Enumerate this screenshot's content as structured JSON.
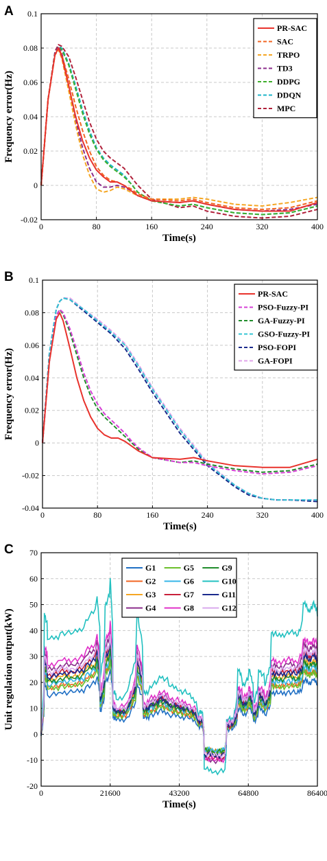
{
  "chart_data": [
    {
      "panel": "A",
      "type": "line",
      "xlabel": "Time(s)",
      "ylabel": "Frequency error(Hz)",
      "xlim": [
        0,
        400
      ],
      "ylim": [
        -0.02,
        0.1
      ],
      "xticks": [
        "0",
        "80",
        "160",
        "240",
        "320",
        "400"
      ],
      "yticks": [
        "-0.02",
        "0",
        "0.02",
        "0.04",
        "0.06",
        "0.08",
        "0.1"
      ],
      "grid": "dashed",
      "legend_position": "top-right",
      "series": [
        {
          "name": "PR-SAC",
          "color": "#e8322c",
          "style": "solid",
          "x": [
            0,
            10,
            20,
            25,
            30,
            40,
            50,
            60,
            70,
            80,
            90,
            100,
            110,
            120,
            130,
            140,
            160,
            200,
            220,
            240,
            280,
            320,
            360,
            400
          ],
          "y": [
            0,
            0.05,
            0.076,
            0.08,
            0.075,
            0.058,
            0.04,
            0.026,
            0.016,
            0.009,
            0.005,
            0.002,
            0.002,
            0.0,
            -0.003,
            -0.006,
            -0.009,
            -0.01,
            -0.009,
            -0.011,
            -0.014,
            -0.015,
            -0.015,
            -0.01
          ]
        },
        {
          "name": "SAC",
          "color": "#f26522",
          "style": "dashed",
          "x": [
            0,
            10,
            20,
            25,
            30,
            40,
            50,
            60,
            70,
            80,
            90,
            100,
            110,
            120,
            130,
            140,
            160,
            200,
            220,
            240,
            280,
            320,
            360,
            400
          ],
          "y": [
            0,
            0.05,
            0.076,
            0.08,
            0.076,
            0.062,
            0.046,
            0.032,
            0.02,
            0.011,
            0.006,
            0.003,
            0.002,
            0.0,
            -0.002,
            -0.005,
            -0.008,
            -0.009,
            -0.008,
            -0.01,
            -0.013,
            -0.014,
            -0.013,
            -0.009
          ]
        },
        {
          "name": "TRPO",
          "color": "#f5a623",
          "style": "dashed",
          "x": [
            0,
            10,
            20,
            25,
            30,
            40,
            50,
            60,
            70,
            80,
            90,
            100,
            110,
            120,
            130,
            140,
            160,
            200,
            220,
            240,
            280,
            320,
            360,
            400
          ],
          "y": [
            0,
            0.05,
            0.076,
            0.079,
            0.074,
            0.055,
            0.035,
            0.018,
            0.006,
            -0.002,
            -0.004,
            -0.003,
            -0.001,
            -0.002,
            -0.004,
            -0.006,
            -0.008,
            -0.008,
            -0.007,
            -0.008,
            -0.011,
            -0.012,
            -0.01,
            -0.007
          ]
        },
        {
          "name": "TD3",
          "color": "#8b2c8b",
          "style": "dashed",
          "x": [
            0,
            10,
            20,
            25,
            30,
            40,
            50,
            60,
            70,
            80,
            90,
            100,
            110,
            120,
            130,
            140,
            160,
            200,
            220,
            240,
            280,
            320,
            360,
            400
          ],
          "y": [
            0,
            0.05,
            0.077,
            0.081,
            0.077,
            0.058,
            0.038,
            0.022,
            0.01,
            0.002,
            -0.001,
            -0.001,
            0.0,
            -0.001,
            -0.003,
            -0.006,
            -0.009,
            -0.01,
            -0.009,
            -0.011,
            -0.014,
            -0.015,
            -0.014,
            -0.011
          ]
        },
        {
          "name": "DDPG",
          "color": "#3dae2b",
          "style": "dashed",
          "x": [
            0,
            10,
            20,
            25,
            30,
            40,
            50,
            60,
            70,
            80,
            90,
            100,
            110,
            120,
            130,
            140,
            160,
            200,
            220,
            240,
            280,
            320,
            360,
            400
          ],
          "y": [
            0,
            0.05,
            0.077,
            0.081,
            0.079,
            0.07,
            0.056,
            0.042,
            0.03,
            0.021,
            0.015,
            0.011,
            0.008,
            0.005,
            0.001,
            -0.004,
            -0.009,
            -0.012,
            -0.011,
            -0.013,
            -0.016,
            -0.017,
            -0.016,
            -0.012
          ]
        },
        {
          "name": "DDQN",
          "color": "#1eb4c8",
          "style": "dashed",
          "x": [
            0,
            10,
            20,
            25,
            30,
            40,
            50,
            60,
            70,
            80,
            90,
            100,
            110,
            120,
            130,
            140,
            160,
            200,
            220,
            240,
            280,
            320,
            360,
            400
          ],
          "y": [
            0,
            0.05,
            0.077,
            0.081,
            0.08,
            0.071,
            0.058,
            0.044,
            0.032,
            0.022,
            0.016,
            0.012,
            0.009,
            0.006,
            0.001,
            -0.004,
            -0.009,
            -0.012,
            -0.011,
            -0.013,
            -0.016,
            -0.017,
            -0.016,
            -0.012
          ]
        },
        {
          "name": "MPC",
          "color": "#b0203a",
          "style": "dashed",
          "x": [
            0,
            10,
            20,
            25,
            30,
            40,
            50,
            60,
            70,
            80,
            90,
            100,
            110,
            120,
            130,
            140,
            160,
            200,
            220,
            240,
            280,
            320,
            360,
            400
          ],
          "y": [
            0,
            0.05,
            0.078,
            0.082,
            0.081,
            0.075,
            0.063,
            0.05,
            0.037,
            0.027,
            0.02,
            0.016,
            0.013,
            0.01,
            0.005,
            0.0,
            -0.008,
            -0.013,
            -0.012,
            -0.015,
            -0.018,
            -0.019,
            -0.018,
            -0.014
          ]
        }
      ]
    },
    {
      "panel": "B",
      "type": "line",
      "xlabel": "Time(s)",
      "ylabel": "Frequency error(Hz)",
      "xlim": [
        0,
        400
      ],
      "ylim": [
        -0.04,
        0.1
      ],
      "xticks": [
        "0",
        "80",
        "160",
        "240",
        "320",
        "400"
      ],
      "yticks": [
        "-0.04",
        "-0.02",
        "0",
        "0.02",
        "0.04",
        "0.06",
        "0.08",
        "0.1"
      ],
      "grid": "dashed",
      "legend_position": "top-right",
      "series": [
        {
          "name": "PR-SAC",
          "color": "#e8322c",
          "style": "solid",
          "x": [
            0,
            10,
            20,
            25,
            30,
            40,
            50,
            60,
            70,
            80,
            90,
            100,
            110,
            120,
            130,
            140,
            160,
            200,
            220,
            240,
            280,
            320,
            360,
            400
          ],
          "y": [
            0,
            0.05,
            0.076,
            0.08,
            0.075,
            0.058,
            0.04,
            0.026,
            0.016,
            0.009,
            0.005,
            0.003,
            0.003,
            0.001,
            -0.002,
            -0.005,
            -0.009,
            -0.01,
            -0.009,
            -0.011,
            -0.014,
            -0.015,
            -0.015,
            -0.01
          ]
        },
        {
          "name": "PSO-Fuzzy-PI",
          "color": "#d63fd6",
          "style": "dashed",
          "x": [
            0,
            10,
            20,
            25,
            30,
            40,
            50,
            60,
            70,
            80,
            90,
            100,
            110,
            120,
            130,
            140,
            160,
            200,
            220,
            240,
            280,
            320,
            360,
            400
          ],
          "y": [
            0,
            0.05,
            0.078,
            0.082,
            0.08,
            0.07,
            0.057,
            0.043,
            0.032,
            0.024,
            0.018,
            0.014,
            0.01,
            0.006,
            0.001,
            -0.003,
            -0.009,
            -0.012,
            -0.012,
            -0.014,
            -0.017,
            -0.019,
            -0.018,
            -0.014
          ]
        },
        {
          "name": "GA-Fuzzy-PI",
          "color": "#1f8c2a",
          "style": "dashed",
          "x": [
            0,
            10,
            20,
            25,
            30,
            40,
            50,
            60,
            70,
            80,
            90,
            100,
            110,
            120,
            130,
            140,
            160,
            200,
            220,
            240,
            280,
            320,
            360,
            400
          ],
          "y": [
            0,
            0.05,
            0.078,
            0.082,
            0.079,
            0.068,
            0.054,
            0.04,
            0.029,
            0.021,
            0.016,
            0.012,
            0.008,
            0.004,
            0.0,
            -0.004,
            -0.009,
            -0.012,
            -0.011,
            -0.013,
            -0.016,
            -0.018,
            -0.017,
            -0.013
          ]
        },
        {
          "name": "GSO-Fuzzy-PI",
          "color": "#35c4d4",
          "style": "dashed",
          "x": [
            0,
            10,
            20,
            25,
            30,
            40,
            60,
            80,
            100,
            120,
            140,
            160,
            200,
            240,
            280,
            300,
            320,
            340,
            360,
            400
          ],
          "y": [
            0,
            0.055,
            0.082,
            0.087,
            0.089,
            0.088,
            0.082,
            0.075,
            0.068,
            0.06,
            0.047,
            0.033,
            0.008,
            -0.013,
            -0.026,
            -0.031,
            -0.034,
            -0.035,
            -0.035,
            -0.035
          ]
        },
        {
          "name": "PSO-FOPI",
          "color": "#1a2a8c",
          "style": "dashed",
          "x": [
            0,
            10,
            20,
            25,
            30,
            40,
            60,
            80,
            100,
            120,
            140,
            160,
            200,
            240,
            280,
            300,
            320,
            340,
            360,
            400
          ],
          "y": [
            0,
            0.055,
            0.082,
            0.087,
            0.089,
            0.088,
            0.081,
            0.074,
            0.067,
            0.058,
            0.045,
            0.031,
            0.006,
            -0.014,
            -0.027,
            -0.032,
            -0.034,
            -0.035,
            -0.035,
            -0.036
          ]
        },
        {
          "name": "GA-FOPI",
          "color": "#e0a3ea",
          "style": "dashed",
          "x": [
            0,
            10,
            20,
            25,
            30,
            40,
            60,
            80,
            100,
            120,
            140,
            160,
            200,
            240,
            280,
            300,
            320,
            340,
            360,
            400
          ],
          "y": [
            0,
            0.055,
            0.082,
            0.087,
            0.089,
            0.089,
            0.082,
            0.076,
            0.069,
            0.061,
            0.048,
            0.034,
            0.009,
            -0.012,
            -0.026,
            -0.031,
            -0.034,
            -0.035,
            -0.035,
            -0.035
          ]
        }
      ]
    },
    {
      "panel": "C",
      "type": "line",
      "xlabel": "Time(s)",
      "ylabel": "Unit regulation output(kW)",
      "xlim": [
        0,
        86400
      ],
      "ylim": [
        -20,
        70
      ],
      "xticks": [
        "0",
        "21600",
        "43200",
        "64800",
        "86400"
      ],
      "yticks": [
        "-20",
        "-10",
        "0",
        "10",
        "20",
        "30",
        "40",
        "50",
        "60",
        "70"
      ],
      "grid": "dashed",
      "legend_position": "top-center",
      "time_points": [
        0,
        1000,
        2000,
        6000,
        10000,
        14000,
        17500,
        18500,
        20000,
        21600,
        22500,
        23500,
        27000,
        30000,
        32000,
        34000,
        37000,
        40000,
        43200,
        46000,
        49000,
        50500,
        51000,
        54000,
        57500,
        58000,
        60000,
        61500,
        63000,
        65000,
        66500,
        68000,
        70000,
        72000,
        74000,
        77000,
        80000,
        82000,
        83500,
        85000,
        86400
      ],
      "base_profile": [
        0,
        0.74,
        0.58,
        0.62,
        0.62,
        0.7,
        0.84,
        0.35,
        0.78,
        0.95,
        0.27,
        0.22,
        0.27,
        0.75,
        0.25,
        0.3,
        0.36,
        0.3,
        0.27,
        0.25,
        0.14,
        0.14,
        -0.2,
        -0.22,
        -0.2,
        0.1,
        0.1,
        0.4,
        0.3,
        0.4,
        0.2,
        0.4,
        0.3,
        0.62,
        0.6,
        0.63,
        0.6,
        0.8,
        0.75,
        0.8,
        0.72
      ],
      "series": [
        {
          "name": "G1",
          "color": "#1f6fc4",
          "scale": 27
        },
        {
          "name": "G2",
          "color": "#f26522",
          "scale": 31
        },
        {
          "name": "G3",
          "color": "#f5a623",
          "scale": 35
        },
        {
          "name": "G4",
          "color": "#8b2c8b",
          "scale": 44
        },
        {
          "name": "G5",
          "color": "#6bbf2a",
          "scale": 30
        },
        {
          "name": "G6",
          "color": "#35b6e8",
          "scale": 32
        },
        {
          "name": "G7",
          "color": "#c8203a",
          "scale": 40
        },
        {
          "name": "G8",
          "color": "#e030c8",
          "scale": 46
        },
        {
          "name": "G9",
          "color": "#1f8c2a",
          "scale": 34
        },
        {
          "name": "G10",
          "color": "#22c0c0",
          "scale": 64
        },
        {
          "name": "G11",
          "color": "#1a2a8c",
          "scale": 38
        },
        {
          "name": "G12",
          "color": "#d9a8ec",
          "scale": 40
        }
      ]
    }
  ]
}
